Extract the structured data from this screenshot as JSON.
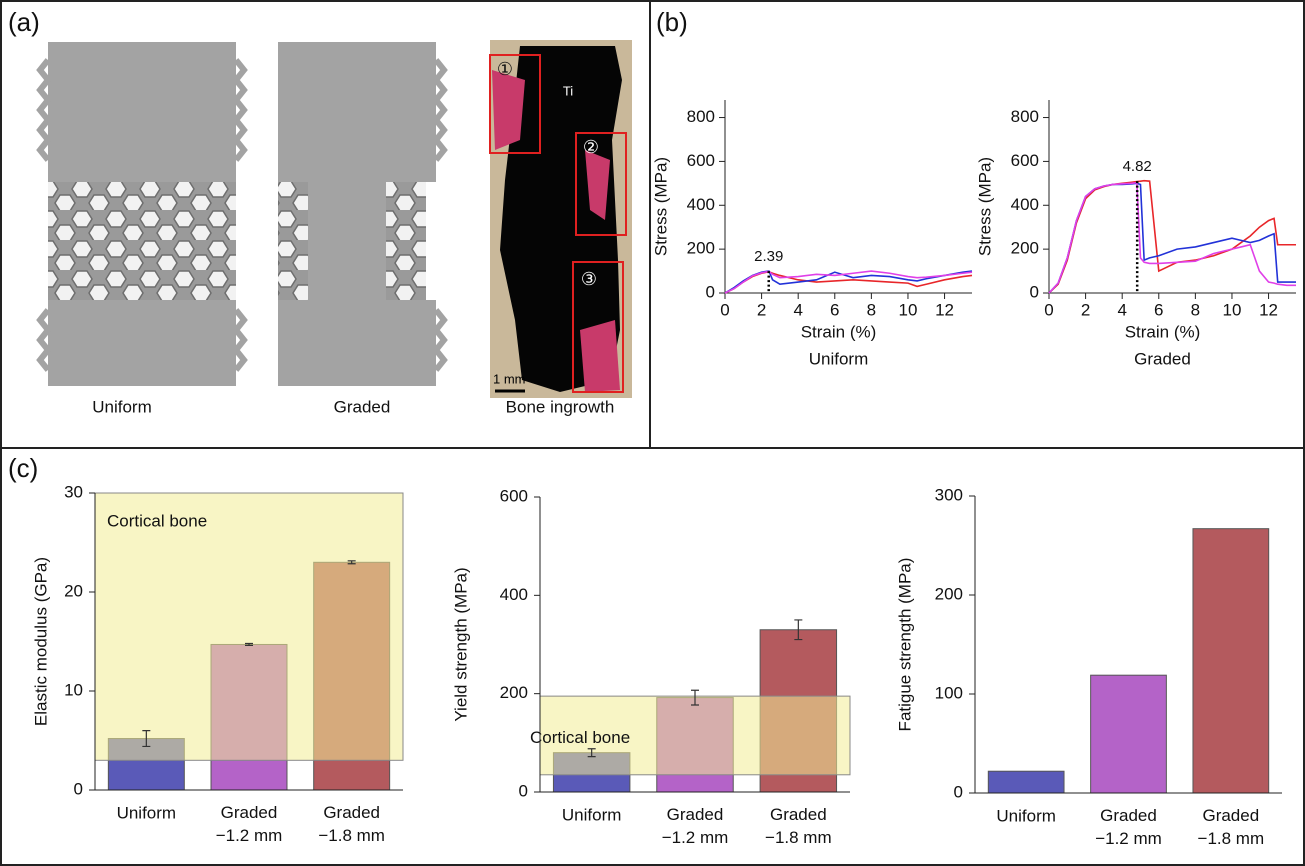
{
  "panel_labels": [
    "(a)",
    "(b)",
    "(c)"
  ],
  "images": {
    "captions": [
      "Uniform",
      "Graded",
      "Bone ingrowth"
    ],
    "material_label": "Ti",
    "scale_bar": "1 mm",
    "regions": [
      "①",
      "②",
      "③"
    ]
  },
  "chart_data": [
    {
      "type": "line",
      "title": "Uniform",
      "x_label": "Strain (%)",
      "y_label": "Stress (MPa)",
      "x": [
        0,
        0.5,
        1,
        1.5,
        2,
        2.4,
        2.6,
        3,
        4,
        5,
        6,
        7,
        8,
        9,
        10,
        10.5,
        11,
        12,
        13,
        13.5
      ],
      "series": [
        {
          "color": "#e8262a",
          "values": [
            0,
            20,
            50,
            75,
            90,
            97,
            90,
            80,
            60,
            50,
            55,
            60,
            55,
            50,
            45,
            30,
            40,
            60,
            75,
            80
          ]
        },
        {
          "color": "#2232d8",
          "values": [
            0,
            25,
            55,
            80,
            95,
            100,
            60,
            40,
            50,
            60,
            95,
            70,
            80,
            75,
            60,
            55,
            65,
            80,
            95,
            100
          ]
        },
        {
          "color": "#e040e8",
          "values": [
            0,
            20,
            50,
            78,
            92,
            98,
            85,
            70,
            75,
            85,
            80,
            90,
            100,
            90,
            75,
            70,
            72,
            80,
            90,
            95
          ]
        }
      ],
      "marker": 2.39,
      "xlim": [
        0,
        13.5
      ],
      "xticks": [
        0,
        2,
        4,
        6,
        8,
        10,
        12
      ],
      "ylim": [
        0,
        880
      ],
      "yticks": [
        0,
        200,
        400,
        600,
        800
      ]
    },
    {
      "type": "line",
      "title": "Graded",
      "x_label": "Strain (%)",
      "y_label": "Stress (MPa)",
      "x": [
        0,
        0.5,
        1,
        1.5,
        2,
        2.5,
        3,
        3.5,
        4,
        4.5,
        4.8,
        5,
        5.2,
        5.5,
        6,
        7,
        8,
        9,
        10,
        10.5,
        11,
        11.5,
        12,
        12.3,
        12.5,
        13,
        13.5
      ],
      "series": [
        {
          "color": "#e8262a",
          "values": [
            0,
            40,
            150,
            320,
            430,
            470,
            485,
            495,
            500,
            505,
            508,
            510,
            512,
            510,
            100,
            140,
            150,
            170,
            200,
            230,
            260,
            300,
            330,
            340,
            220,
            220,
            220
          ]
        },
        {
          "color": "#2232d8",
          "values": [
            0,
            45,
            160,
            330,
            440,
            475,
            488,
            495,
            495,
            497,
            500,
            495,
            150,
            160,
            170,
            200,
            210,
            230,
            250,
            240,
            230,
            240,
            260,
            270,
            50,
            50,
            50
          ]
        },
        {
          "color": "#e040e8",
          "values": [
            0,
            45,
            160,
            330,
            440,
            475,
            488,
            495,
            498,
            500,
            503,
            160,
            140,
            135,
            135,
            140,
            145,
            180,
            200,
            210,
            220,
            100,
            50,
            45,
            40,
            35,
            35
          ]
        }
      ],
      "marker": 4.82,
      "xlim": [
        0,
        13.5
      ],
      "xticks": [
        0,
        2,
        4,
        6,
        8,
        10,
        12
      ],
      "ylim": [
        0,
        880
      ],
      "yticks": [
        0,
        200,
        400,
        600,
        800
      ]
    },
    {
      "type": "bar",
      "y_label": "Elastic modulus (GPa)",
      "categories": [
        "Uniform",
        "Graded\n−1.2 mm",
        "Graded\n−1.8 mm"
      ],
      "values": [
        5.2,
        14.7,
        23
      ],
      "errors": [
        0.8,
        0.1,
        0.15
      ],
      "colors": [
        "#5a5ab8",
        "#b463c8",
        "#b45a5e"
      ],
      "band": {
        "range": [
          3,
          30
        ],
        "label": "Cortical bone",
        "color": "#f2ec96"
      },
      "ylim": [
        0,
        30
      ],
      "yticks": [
        0,
        10,
        20,
        30
      ]
    },
    {
      "type": "bar",
      "y_label": "Yield strength (MPa)",
      "categories": [
        "Uniform",
        "Graded\n−1.2 mm",
        "Graded\n−1.8 mm"
      ],
      "values": [
        80,
        192,
        330
      ],
      "errors": [
        8,
        15,
        20
      ],
      "colors": [
        "#5a5ab8",
        "#b463c8",
        "#b45a5e"
      ],
      "band": {
        "range": [
          35,
          195
        ],
        "label": "Cortical bone",
        "color": "#f2ec96"
      },
      "ylim": [
        0,
        600
      ],
      "yticks": [
        0,
        200,
        400,
        600
      ]
    },
    {
      "type": "bar",
      "y_label": "Fatigue strength (MPa)",
      "categories": [
        "Uniform",
        "Graded\n−1.2 mm",
        "Graded\n−1.8 mm"
      ],
      "values": [
        22,
        119,
        267
      ],
      "colors": [
        "#5a5ab8",
        "#b463c8",
        "#b45a5e"
      ],
      "ylim": [
        0,
        300
      ],
      "yticks": [
        0,
        100,
        200,
        300
      ]
    }
  ]
}
